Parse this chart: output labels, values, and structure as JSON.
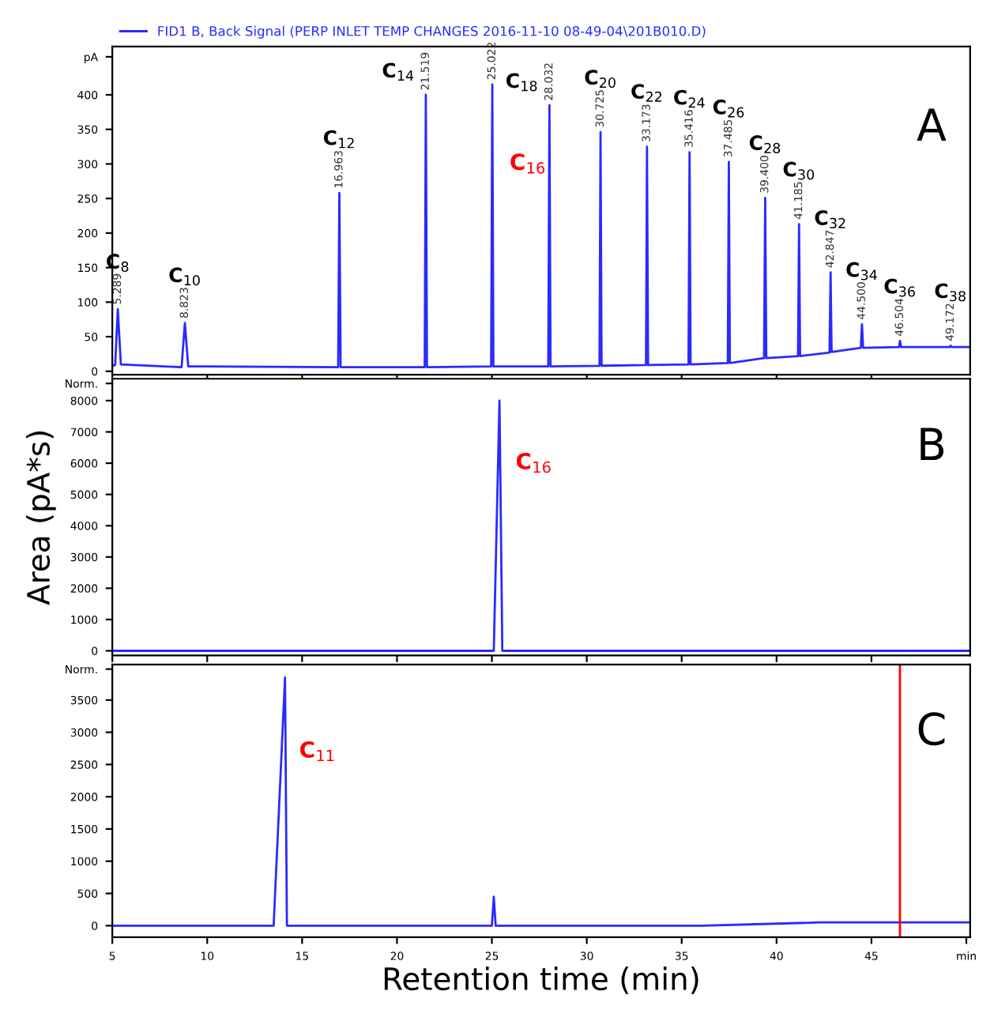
{
  "chart_data": [
    {
      "type": "line",
      "xlim": [
        5,
        50.2
      ],
      "xticks": [
        5,
        10,
        15,
        20,
        25,
        30,
        35,
        40,
        45
      ],
      "ylim": [
        -5,
        470
      ],
      "yticks": [
        0,
        50,
        100,
        150,
        200,
        250,
        300,
        350,
        400,
        {
          "value": 455,
          "label": "pA"
        }
      ],
      "tick_labels": "y",
      "grid": false,
      "legend": "top left",
      "series": [
        {
          "name": "FID1 B, Back Signal (PERP INLET TEMP CHANGES 2016-11-10 08-49-04\\201B010.D)",
          "color": "#2a2aff",
          "x": [
            5,
            5.15,
            5.289,
            5.45,
            8.65,
            8.823,
            9.0,
            16.9,
            16.963,
            17.03,
            21.46,
            21.519,
            21.58,
            24.96,
            25.022,
            25.08,
            27.97,
            28.032,
            28.09,
            30.67,
            30.725,
            30.78,
            33.12,
            33.173,
            33.23,
            35.36,
            35.416,
            35.47,
            37.43,
            37.485,
            37.54,
            39.34,
            39.4,
            39.46,
            41.13,
            41.185,
            41.24,
            42.79,
            42.847,
            42.9,
            44.44,
            44.5,
            44.56,
            46.45,
            46.504,
            46.56,
            49.12,
            49.172,
            49.23,
            50.2
          ],
          "values": [
            8,
            9,
            90,
            10,
            6,
            70,
            7,
            6,
            258,
            6,
            6,
            400,
            6,
            7,
            415,
            7,
            7,
            385,
            7,
            8,
            346,
            8,
            9,
            325,
            9,
            10,
            317,
            10,
            12,
            303,
            12,
            19,
            251,
            19,
            22,
            213,
            22,
            27,
            143,
            28,
            34,
            68,
            34,
            35,
            44,
            35,
            35,
            37,
            35,
            35
          ]
        }
      ],
      "annotations": [
        {
          "text": "5.289",
          "x": 5.289,
          "y": 90
        },
        {
          "text": "8.823",
          "x": 8.823,
          "y": 70
        },
        {
          "text": "16.963",
          "x": 16.963,
          "y": 258
        },
        {
          "text": "21.519",
          "x": 21.519,
          "y": 400
        },
        {
          "text": "25.022",
          "x": 25.022,
          "y": 415
        },
        {
          "text": "28.032",
          "x": 28.032,
          "y": 385
        },
        {
          "text": "30.725",
          "x": 30.725,
          "y": 346
        },
        {
          "text": "33.173",
          "x": 33.173,
          "y": 325
        },
        {
          "text": "35.416",
          "x": 35.416,
          "y": 317
        },
        {
          "text": "37.485",
          "x": 37.485,
          "y": 303
        },
        {
          "text": "39.400",
          "x": 39.4,
          "y": 251
        },
        {
          "text": "41.185",
          "x": 41.185,
          "y": 213
        },
        {
          "text": "42.847",
          "x": 42.847,
          "y": 143
        },
        {
          "text": "44.500",
          "x": 44.5,
          "y": 68
        },
        {
          "text": "46.504",
          "x": 46.504,
          "y": 44
        },
        {
          "text": "49.172",
          "x": 49.172,
          "y": 37
        },
        {
          "text": "C$_{8}$",
          "x": 5.289,
          "y": 90
        },
        {
          "text": "C$_{10}$",
          "x": 8.823,
          "y": 70
        },
        {
          "text": "C$_{12}$",
          "x": 16.963,
          "y": 258
        },
        {
          "text": "C$_{14}$",
          "x": 21.519,
          "y": 400
        },
        {
          "text": "C$_{16}$",
          "x": 25.005,
          "y": 300
        },
        {
          "text": "C$_{18}$",
          "x": 28.032,
          "y": 385
        },
        {
          "text": "C$_{20}$",
          "x": 30.725,
          "y": 346
        },
        {
          "text": "C$_{22}$",
          "x": 33.173,
          "y": 325
        },
        {
          "text": "C$_{24}$",
          "x": 35.416,
          "y": 317
        },
        {
          "text": "C$_{26}$",
          "x": 37.485,
          "y": 303
        },
        {
          "text": "C$_{28}$",
          "x": 39.4,
          "y": 251
        },
        {
          "text": "C$_{30}$",
          "x": 41.185,
          "y": 213
        },
        {
          "text": "C$_{32}$",
          "x": 42.847,
          "y": 143
        },
        {
          "text": "C$_{34}$",
          "x": 44.5,
          "y": 68
        },
        {
          "text": "C$_{36}$",
          "x": 46.504,
          "y": 44
        },
        {
          "text": "C$_{38}$",
          "x": 49.172,
          "y": 37
        },
        "A"
      ]
    },
    {
      "type": "line",
      "xlim": [
        5,
        50.2
      ],
      "xticks": [
        5,
        10,
        15,
        20,
        25,
        30,
        35,
        40,
        45
      ],
      "ylim": [
        -150,
        8700
      ],
      "yticks": [
        0,
        1000,
        2000,
        3000,
        4000,
        5000,
        6000,
        7000,
        8000,
        {
          "value": 8550,
          "label": "Norm."
        }
      ],
      "tick_labels": "y",
      "grid": false,
      "ylabel": "Area (pA*s)",
      "series": [
        {
          "color": "#2a2aff",
          "x": [
            5,
            25.1,
            25.4,
            25.55,
            50.2
          ],
          "values": [
            0,
            0,
            8000,
            0,
            0
          ]
        }
      ],
      "annotations": [
        {
          "text": "C$_{16}$",
          "x": 25.325,
          "y": 6000
        },
        "B"
      ]
    },
    {
      "type": "line",
      "xlim": [
        5,
        50.2
      ],
      "xticks": [
        5,
        10,
        15,
        20,
        25,
        30,
        35,
        40,
        45,
        {
          "value": 50,
          "label": "min"
        }
      ],
      "ylim": [
        -180,
        4050
      ],
      "yticks": [
        0,
        500,
        1000,
        1500,
        2000,
        2500,
        3000,
        3500,
        {
          "value": 3980,
          "label": "Norm."
        }
      ],
      "grid": false,
      "xlabel": "Retention time (min)",
      "series": [
        {
          "color": "#2a2aff",
          "x": [
            5,
            13.5,
            14.1,
            14.2,
            25.0,
            25.1,
            25.2,
            36,
            42.3,
            50.2
          ],
          "values": [
            0,
            0,
            3850,
            0,
            0,
            450,
            0,
            0,
            50,
            50
          ]
        }
      ],
      "ref_lines": [
        {
          "axis": "x",
          "value": 46.5,
          "color": "#ff0000"
        }
      ],
      "annotations": [
        {
          "text": "C$_{11}$",
          "x": 13.921,
          "y": 2700
        },
        "C"
      ]
    }
  ]
}
